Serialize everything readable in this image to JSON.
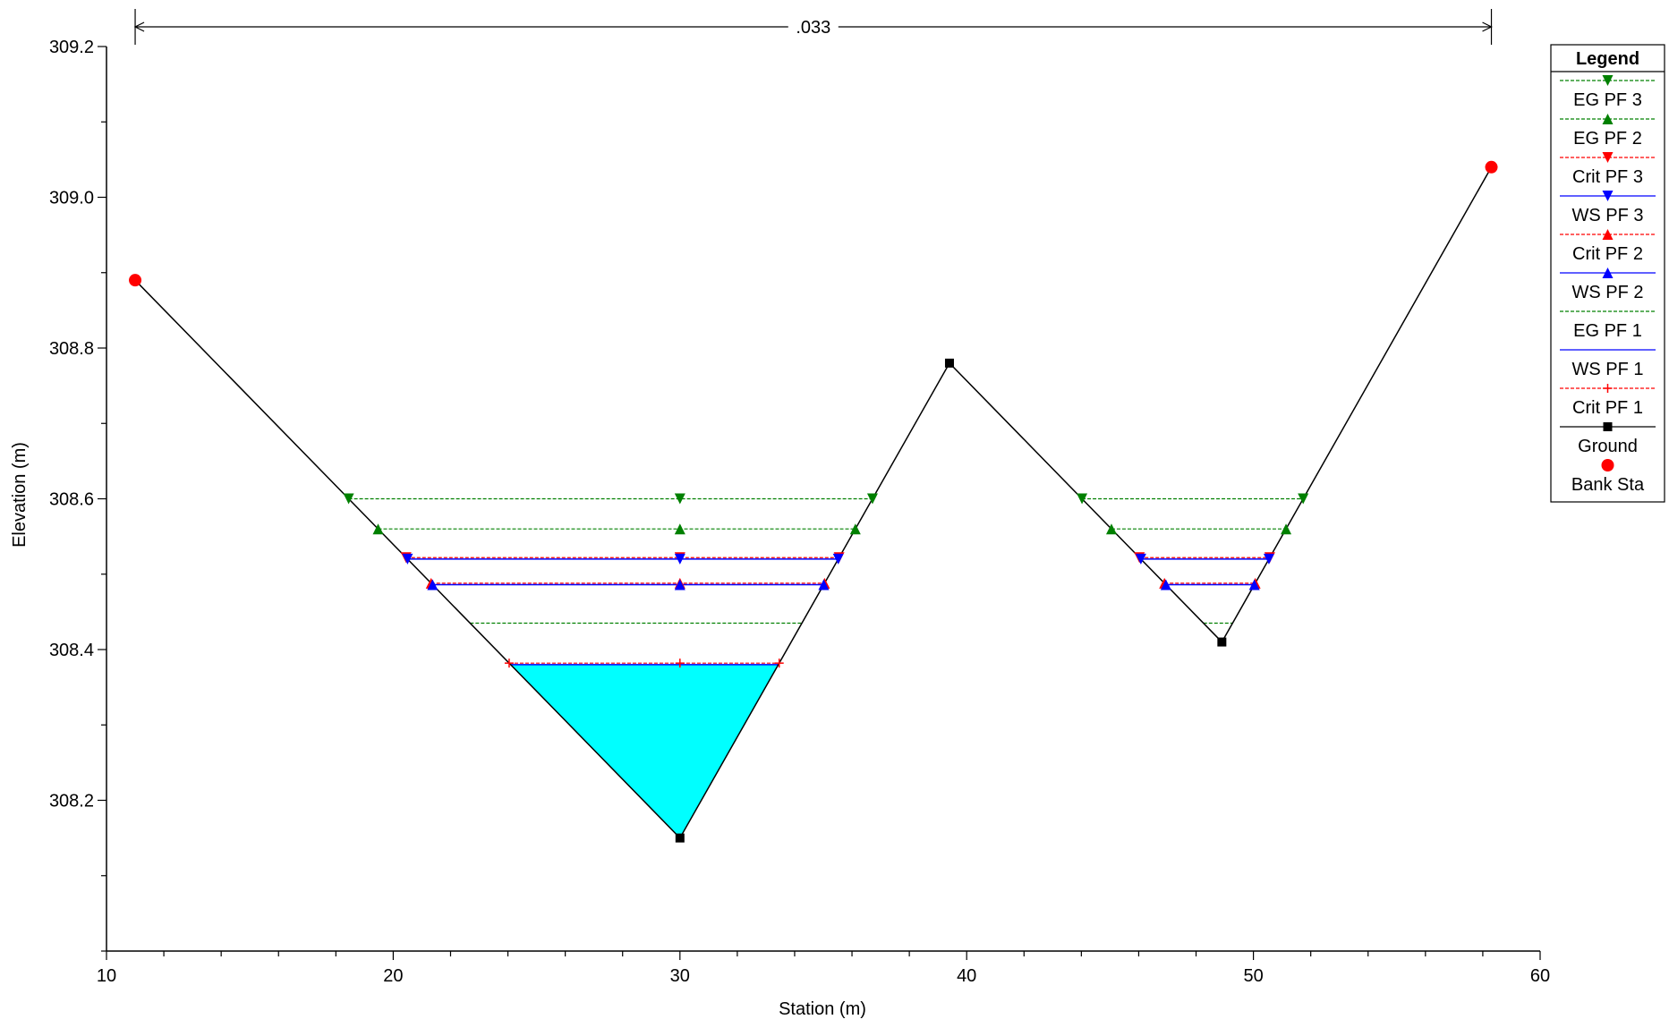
{
  "chart_data": {
    "type": "line",
    "xlabel": "Station (m)",
    "ylabel": "Elevation (m)",
    "xlim": [
      10,
      60
    ],
    "ylim": [
      308.0,
      309.2
    ],
    "x_ticks": [
      10,
      20,
      30,
      40,
      50,
      60
    ],
    "y_ticks": [
      308.2,
      308.4,
      308.6,
      308.8,
      309.0,
      309.2
    ],
    "x_tick_labels": [
      "10",
      "20",
      "30",
      "40",
      "50",
      "60"
    ],
    "y_tick_labels": [
      "308.2",
      "308.4",
      "308.6",
      "308.8",
      "309.0",
      "309.2"
    ],
    "x_minor_step": 2,
    "y_minor_step": 0.1,
    "grid": false,
    "manning": {
      "label": ".033",
      "x_start": 11,
      "x_end": 58.3
    },
    "ground": {
      "name": "Ground",
      "color": "#000000",
      "x": [
        11,
        30,
        39.4,
        48.9,
        58.3
      ],
      "y": [
        308.89,
        308.15,
        308.78,
        308.41,
        309.04
      ]
    },
    "bank_stations": {
      "name": "Bank Sta",
      "color": "#ff0000",
      "points": [
        {
          "x": 11,
          "y": 308.89
        },
        {
          "x": 58.3,
          "y": 309.04
        }
      ]
    },
    "water_fill": {
      "color": "#00ffff",
      "elevation": 308.38
    },
    "series": [
      {
        "name": "EG PF 3",
        "color": "#008000",
        "style": "dashed",
        "marker": "triangle-down",
        "elevation": 308.6
      },
      {
        "name": "EG PF 2",
        "color": "#008000",
        "style": "dashed",
        "marker": "triangle-up",
        "elevation": 308.56
      },
      {
        "name": "Crit PF 3",
        "color": "#ff0000",
        "style": "dashed",
        "marker": "triangle-down",
        "elevation": 308.522
      },
      {
        "name": "WS PF 3",
        "color": "#0000ff",
        "style": "solid",
        "marker": "triangle-down",
        "elevation": 308.52
      },
      {
        "name": "Crit PF 2",
        "color": "#ff0000",
        "style": "dashed",
        "marker": "triangle-up",
        "elevation": 308.488
      },
      {
        "name": "WS PF 2",
        "color": "#0000ff",
        "style": "solid",
        "marker": "triangle-up",
        "elevation": 308.486
      },
      {
        "name": "EG PF 1",
        "color": "#008000",
        "style": "dashed",
        "marker": "none",
        "elevation": 308.435
      },
      {
        "name": "WS PF 1",
        "color": "#0000ff",
        "style": "solid",
        "marker": "none",
        "elevation": 308.38
      },
      {
        "name": "Crit PF 1",
        "color": "#ff0000",
        "style": "dashed",
        "marker": "plus",
        "elevation": 308.382
      }
    ],
    "legend": {
      "title": "Legend",
      "placement": "top-right",
      "entries": [
        {
          "label": "EG PF 3",
          "color": "#008000",
          "style": "dashed",
          "marker": "triangle-down"
        },
        {
          "label": "EG PF 2",
          "color": "#008000",
          "style": "dashed",
          "marker": "triangle-up"
        },
        {
          "label": "Crit PF 3",
          "color": "#ff0000",
          "style": "dashed",
          "marker": "triangle-down"
        },
        {
          "label": "WS PF 3",
          "color": "#0000ff",
          "style": "solid",
          "marker": "triangle-down"
        },
        {
          "label": "Crit PF 2",
          "color": "#ff0000",
          "style": "dashed",
          "marker": "triangle-up"
        },
        {
          "label": "WS PF 2",
          "color": "#0000ff",
          "style": "solid",
          "marker": "triangle-up"
        },
        {
          "label": "EG PF 1",
          "color": "#008000",
          "style": "dashed",
          "marker": "none"
        },
        {
          "label": "WS PF 1",
          "color": "#0000ff",
          "style": "solid",
          "marker": "none"
        },
        {
          "label": "Crit PF 1",
          "color": "#ff0000",
          "style": "dashed",
          "marker": "plus"
        },
        {
          "label": "Ground",
          "color": "#000000",
          "style": "solid",
          "marker": "square"
        },
        {
          "label": "Bank Sta",
          "color": "#ff0000",
          "style": "none",
          "marker": "circle"
        }
      ]
    }
  }
}
